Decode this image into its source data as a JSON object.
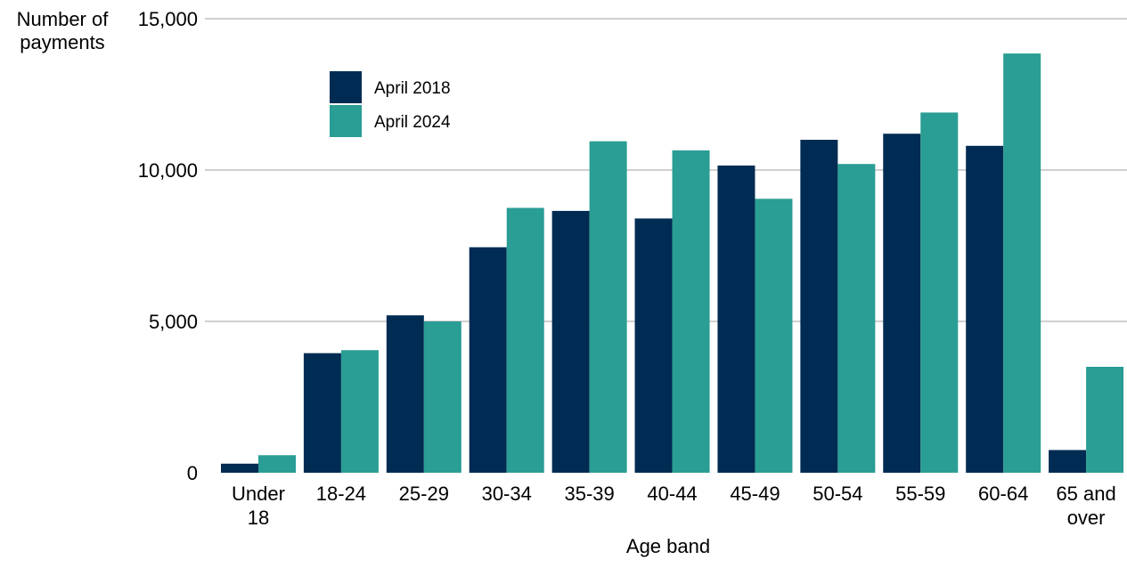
{
  "chart_data": {
    "type": "bar",
    "categories": [
      [
        "Under",
        "18"
      ],
      [
        "18-24"
      ],
      [
        "25-29"
      ],
      [
        "30-34"
      ],
      [
        "35-39"
      ],
      [
        "40-44"
      ],
      [
        "45-49"
      ],
      [
        "50-54"
      ],
      [
        "55-59"
      ],
      [
        "60-64"
      ],
      [
        "65 and",
        "over"
      ]
    ],
    "series": [
      {
        "name": "April 2018",
        "color": "#002b52",
        "values": [
          300,
          3950,
          5200,
          7450,
          8650,
          8400,
          10150,
          11000,
          11200,
          10800,
          750
        ]
      },
      {
        "name": "April 2024",
        "color": "#2a9d94",
        "values": [
          580,
          4050,
          5000,
          8750,
          10950,
          10650,
          9050,
          10200,
          11900,
          13850,
          3500
        ]
      }
    ],
    "xlabel": "Age band",
    "ylabel_lines": [
      "Number of",
      "payments"
    ],
    "ylim": [
      0,
      15000
    ],
    "yticks": [
      0,
      5000,
      10000,
      15000
    ],
    "ytick_labels": [
      "0",
      "5,000",
      "10,000",
      "15,000"
    ],
    "grid": true,
    "legend_position": "top-left"
  }
}
